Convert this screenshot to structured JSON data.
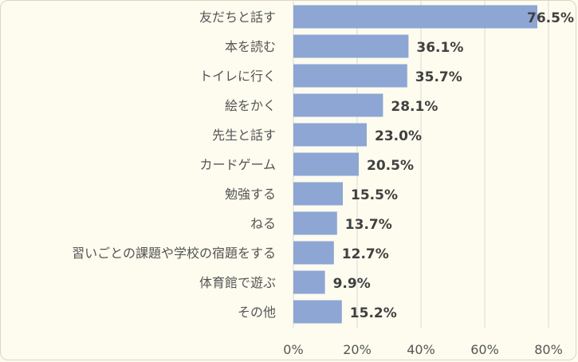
{
  "chart_data": {
    "type": "bar",
    "orientation": "horizontal",
    "categories": [
      "友だちと話す",
      "本を読む",
      "トイレに行く",
      "絵をかく",
      "先生と話す",
      "カードゲーム",
      "勉強する",
      "ねる",
      "習いごとの課題や学校の宿題をする",
      "体育館で遊ぶ",
      "その他"
    ],
    "values": [
      76.5,
      36.1,
      35.7,
      28.1,
      23.0,
      20.5,
      15.5,
      13.7,
      12.7,
      9.9,
      15.2
    ],
    "value_labels": [
      "76.5%",
      "36.1%",
      "35.7%",
      "28.1%",
      "23.0%",
      "20.5%",
      "15.5%",
      "13.7%",
      "12.7%",
      "9.9%",
      "15.2%"
    ],
    "xlim": [
      0,
      80
    ],
    "xticks": [
      0,
      20,
      40,
      60,
      80
    ],
    "xtick_labels": [
      "0%",
      "20%",
      "40%",
      "60%",
      "80%"
    ],
    "grid": true,
    "bar_color": "#8da6d4",
    "grid_color": "#d9d9d9"
  }
}
